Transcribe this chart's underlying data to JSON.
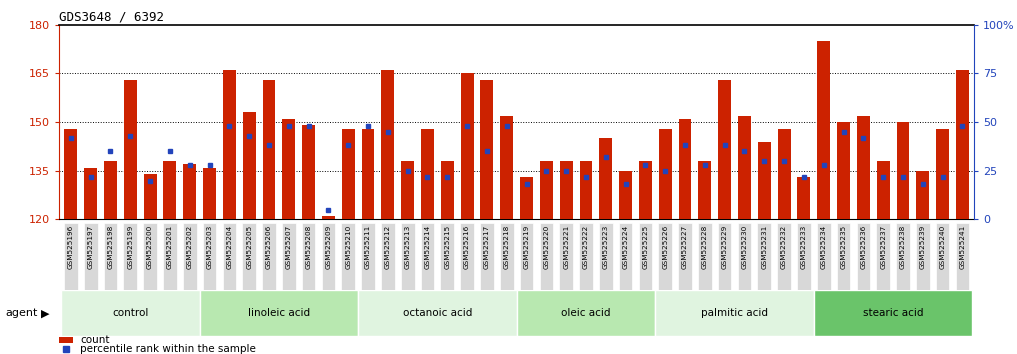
{
  "title": "GDS3648 / 6392",
  "samples": [
    "GSM525196",
    "GSM525197",
    "GSM525198",
    "GSM525199",
    "GSM525200",
    "GSM525201",
    "GSM525202",
    "GSM525203",
    "GSM525204",
    "GSM525205",
    "GSM525206",
    "GSM525207",
    "GSM525208",
    "GSM525209",
    "GSM525210",
    "GSM525211",
    "GSM525212",
    "GSM525213",
    "GSM525214",
    "GSM525215",
    "GSM525216",
    "GSM525217",
    "GSM525218",
    "GSM525219",
    "GSM525220",
    "GSM525221",
    "GSM525222",
    "GSM525223",
    "GSM525224",
    "GSM525225",
    "GSM525226",
    "GSM525227",
    "GSM525228",
    "GSM525229",
    "GSM525230",
    "GSM525231",
    "GSM525232",
    "GSM525233",
    "GSM525234",
    "GSM525235",
    "GSM525236",
    "GSM525237",
    "GSM525238",
    "GSM525239",
    "GSM525240",
    "GSM525241"
  ],
  "counts": [
    148,
    136,
    138,
    163,
    134,
    138,
    137,
    136,
    166,
    153,
    163,
    151,
    149,
    121,
    148,
    148,
    166,
    138,
    148,
    138,
    165,
    163,
    152,
    133,
    138,
    138,
    138,
    145,
    135,
    138,
    148,
    151,
    138,
    163,
    152,
    144,
    148,
    133,
    175,
    150,
    152,
    138,
    150,
    135,
    148,
    166
  ],
  "percentile_ranks": [
    42,
    22,
    35,
    43,
    20,
    35,
    28,
    28,
    48,
    43,
    38,
    48,
    48,
    5,
    38,
    48,
    45,
    25,
    22,
    22,
    48,
    35,
    48,
    18,
    25,
    25,
    22,
    32,
    18,
    28,
    25,
    38,
    28,
    38,
    35,
    30,
    30,
    22,
    28,
    45,
    42,
    22,
    22,
    18,
    22,
    48
  ],
  "groups": [
    {
      "label": "control",
      "start": 0,
      "end": 7,
      "color": "#e0f4e0"
    },
    {
      "label": "linoleic acid",
      "start": 7,
      "end": 15,
      "color": "#b8e8b0"
    },
    {
      "label": "octanoic acid",
      "start": 15,
      "end": 23,
      "color": "#e0f4e0"
    },
    {
      "label": "oleic acid",
      "start": 23,
      "end": 30,
      "color": "#b8e8b0"
    },
    {
      "label": "palmitic acid",
      "start": 30,
      "end": 38,
      "color": "#e0f4e0"
    },
    {
      "label": "stearic acid",
      "start": 38,
      "end": 46,
      "color": "#6ac46a"
    }
  ],
  "ylim_left": [
    120,
    180
  ],
  "ylim_right": [
    0,
    100
  ],
  "yticks_left": [
    120,
    135,
    150,
    165,
    180
  ],
  "yticks_right": [
    0,
    25,
    50,
    75,
    100
  ],
  "ytick_labels_right": [
    "0",
    "25",
    "50",
    "75",
    "100%"
  ],
  "bar_color": "#cc2200",
  "percentile_color": "#2244bb",
  "bar_width": 0.65,
  "plot_bg": "#ffffff",
  "xtick_bg": "#d8d8d8",
  "left_axis_color": "#cc2200",
  "right_axis_color": "#2244bb",
  "grid_color": "#000000"
}
